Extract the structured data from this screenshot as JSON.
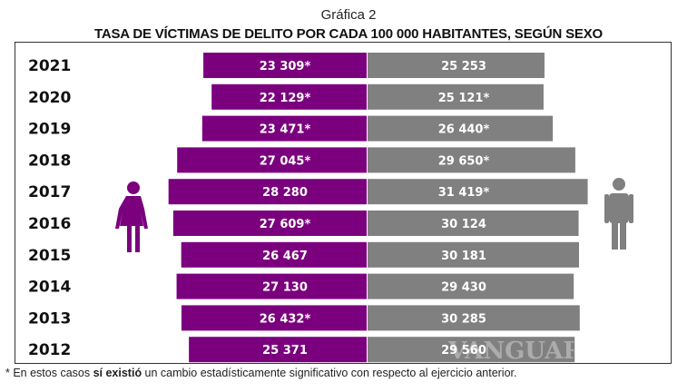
{
  "chart_data": {
    "type": "bar",
    "orientation": "horizontal-butterfly",
    "caption": "Gráfica 2",
    "title": "TASA DE VÍCTIMAS DE DELITO POR CADA 100 000 HABITANTES, SEGÚN SEXO",
    "categories": [
      "2021",
      "2020",
      "2019",
      "2018",
      "2017",
      "2016",
      "2015",
      "2014",
      "2013",
      "2012"
    ],
    "series": [
      {
        "values": [
          23309,
          22129,
          23471,
          27045,
          28280,
          27609,
          26467,
          27130,
          26432,
          25371
        ],
        "labels": [
          "23 309*",
          "22 129*",
          "23 471*",
          "27 045*",
          "28 280",
          "27 609*",
          "26 467",
          "27 130",
          "26 432*",
          "25 371"
        ],
        "color": "#7b007e",
        "side": "left",
        "icon": "female-icon"
      },
      {
        "values": [
          25253,
          25121,
          26440,
          29650,
          31419,
          30124,
          30181,
          29430,
          30285,
          29560
        ],
        "labels": [
          "25 253",
          "25 121*",
          "26 440*",
          "29 650*",
          "31 419*",
          "30 124",
          "30 181",
          "29 430",
          "30 285",
          "29 560"
        ],
        "color": "#808080",
        "side": "right",
        "icon": "male-icon"
      }
    ],
    "grid": false
  },
  "footnote": {
    "prefix": "* En estos casos ",
    "bold": "sí existió",
    "suffix": " un cambio estadísticamente significativo con respecto al ejercicio anterior."
  },
  "watermark": "VANGUARDIA"
}
